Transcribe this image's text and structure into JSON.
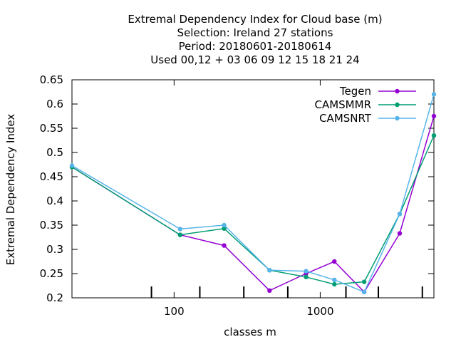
{
  "chart_data": {
    "type": "line",
    "title_lines": [
      "Extremal Dependency Index  for Cloud base (m)",
      "Selection: Ireland     27 stations",
      "Period: 20180601-20180614",
      "Used  00,12  + 03 06 09 12 15 18 21 24"
    ],
    "xlabel": "classes m",
    "ylabel": "Extremal Dependency Index",
    "xscale": "log",
    "xlim": [
      20,
      6000
    ],
    "ylim": [
      0.2,
      0.65
    ],
    "x_ticks": [
      100,
      1000
    ],
    "x_tick_labels": [
      "100",
      "1000"
    ],
    "y_ticks": [
      0.2,
      0.25,
      0.3,
      0.35,
      0.4,
      0.45,
      0.5,
      0.55,
      0.6,
      0.65
    ],
    "y_tick_labels": [
      "0.2",
      "0.25",
      "0.3",
      "0.35",
      "0.4",
      "0.45",
      "0.5",
      "0.55",
      "0.6",
      "0.65"
    ],
    "x_minor_ticks": [
      70,
      150,
      300,
      600,
      1500,
      2500,
      5000
    ],
    "legend_position": "top-right",
    "grid": false,
    "x": [
      20,
      110,
      220,
      450,
      800,
      1250,
      2000,
      3500,
      6000
    ],
    "series": [
      {
        "name": "Tegen",
        "color": "#9400d3",
        "values": [
          0.47,
          0.33,
          0.308,
          0.215,
          0.25,
          0.275,
          0.212,
          0.333,
          0.575
        ]
      },
      {
        "name": "CAMSMMR",
        "color": "#009e73",
        "values": [
          0.47,
          0.33,
          0.343,
          0.257,
          0.243,
          0.228,
          0.233,
          0.373,
          0.535
        ]
      },
      {
        "name": "CAMSNRT",
        "color": "#56b4e9",
        "values": [
          0.473,
          0.342,
          0.35,
          0.257,
          0.255,
          0.237,
          0.212,
          0.373,
          0.62
        ]
      }
    ]
  }
}
